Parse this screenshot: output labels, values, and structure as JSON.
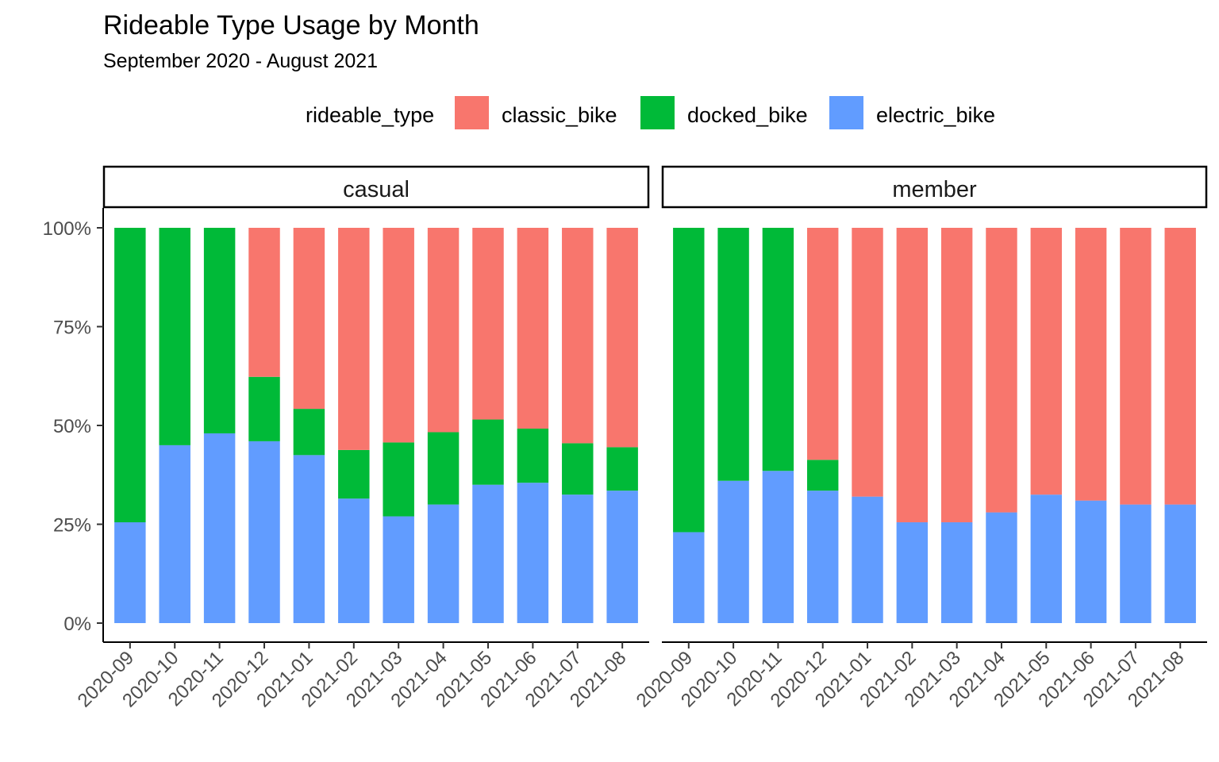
{
  "chart_data": {
    "type": "bar",
    "stacked": true,
    "percent": true,
    "title": "Rideable Type Usage by Month",
    "subtitle": "September 2020 - August 2021",
    "legend": {
      "title": "rideable_type",
      "position": "top",
      "items": [
        {
          "key": "classic_bike",
          "label": "classic_bike",
          "color": "#F8766D"
        },
        {
          "key": "docked_bike",
          "label": "docked_bike",
          "color": "#00BA38"
        },
        {
          "key": "electric_bike",
          "label": "electric_bike",
          "color": "#619CFF"
        }
      ]
    },
    "categories": [
      "2020-09",
      "2020-10",
      "2020-11",
      "2020-12",
      "2021-01",
      "2021-02",
      "2021-03",
      "2021-04",
      "2021-05",
      "2021-06",
      "2021-07",
      "2021-08"
    ],
    "y_ticks": [
      "0%",
      "25%",
      "50%",
      "75%",
      "100%"
    ],
    "ylim": [
      0,
      100
    ],
    "grid": false,
    "panels": [
      {
        "label": "casual",
        "series": [
          {
            "name": "electric_bike",
            "values": [
              25.5,
              45,
              48,
              46,
              42.5,
              31.5,
              27,
              30,
              35,
              35.5,
              32.5,
              33.5
            ]
          },
          {
            "name": "docked_bike",
            "values": [
              74.5,
              55,
              52,
              16.3,
              11.7,
              12.3,
              18.7,
              18.3,
              16.5,
              13.7,
              13,
              11
            ]
          },
          {
            "name": "classic_bike",
            "values": [
              0,
              0,
              0,
              37.7,
              45.8,
              56.2,
              54.3,
              51.7,
              48.5,
              50.8,
              54.5,
              55.5
            ]
          }
        ]
      },
      {
        "label": "member",
        "series": [
          {
            "name": "electric_bike",
            "values": [
              23,
              36,
              38.5,
              33.5,
              32,
              25.5,
              25.5,
              28,
              32.5,
              31,
              30,
              30
            ]
          },
          {
            "name": "docked_bike",
            "values": [
              77,
              64,
              61.5,
              7.8,
              0,
              0,
              0,
              0,
              0,
              0,
              0,
              0
            ]
          },
          {
            "name": "classic_bike",
            "values": [
              0,
              0,
              0,
              58.7,
              68,
              74.5,
              74.5,
              72,
              67.5,
              69,
              70,
              70
            ]
          }
        ]
      }
    ]
  }
}
